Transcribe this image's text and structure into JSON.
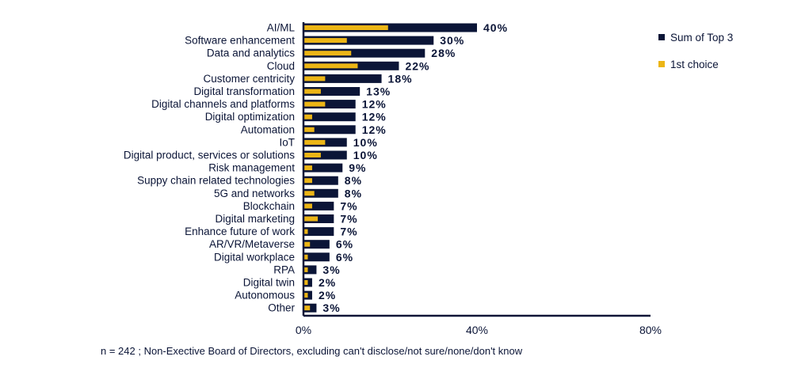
{
  "chart_data": {
    "type": "bar",
    "orientation": "horizontal",
    "categories": [
      "AI/ML",
      "Software enhancement",
      "Data and analytics",
      "Cloud",
      "Customer centricity",
      "Digital transformation",
      "Digital channels and platforms",
      "Digital optimization",
      "Automation",
      "IoT",
      "Digital product, services or solutions",
      "Risk management",
      "Suppy chain related technologies",
      "5G and networks",
      "Blockchain",
      "Digital marketing",
      "Enhance future of work",
      "AR/VR/Metaverse",
      "Digital workplace",
      "RPA",
      "Digital twin",
      "Autonomous",
      "Other"
    ],
    "series": [
      {
        "name": "Sum of Top 3",
        "color": "#0b1537",
        "values": [
          40,
          30,
          28,
          22,
          18,
          13,
          12,
          12,
          12,
          10,
          10,
          9,
          8,
          8,
          7,
          7,
          7,
          6,
          6,
          3,
          2,
          2,
          3
        ]
      },
      {
        "name": "1st choice",
        "color": "#ecb516",
        "values": [
          19.5,
          10,
          11,
          12.5,
          5,
          4,
          5,
          2,
          2.5,
          5,
          4,
          2,
          2,
          2.5,
          2,
          3.3,
          1,
          1.5,
          1,
          1,
          1,
          1,
          1.5
        ]
      }
    ],
    "value_labels": [
      "40%",
      "30%",
      "28%",
      "22%",
      "18%",
      "13%",
      "12%",
      "12%",
      "12%",
      "10%",
      "10%",
      "9%",
      "8%",
      "8%",
      "7%",
      "7%",
      "7%",
      "6%",
      "6%",
      "3%",
      "2%",
      "2%",
      "3%"
    ],
    "xlim": [
      0,
      80
    ],
    "xticks": [
      "0%",
      "40%",
      "80%"
    ],
    "legend_position": "top-right"
  },
  "footnote": "n = 242 ; Non-Exective Board of Directors, excluding can't disclose/not sure/none/don't know"
}
